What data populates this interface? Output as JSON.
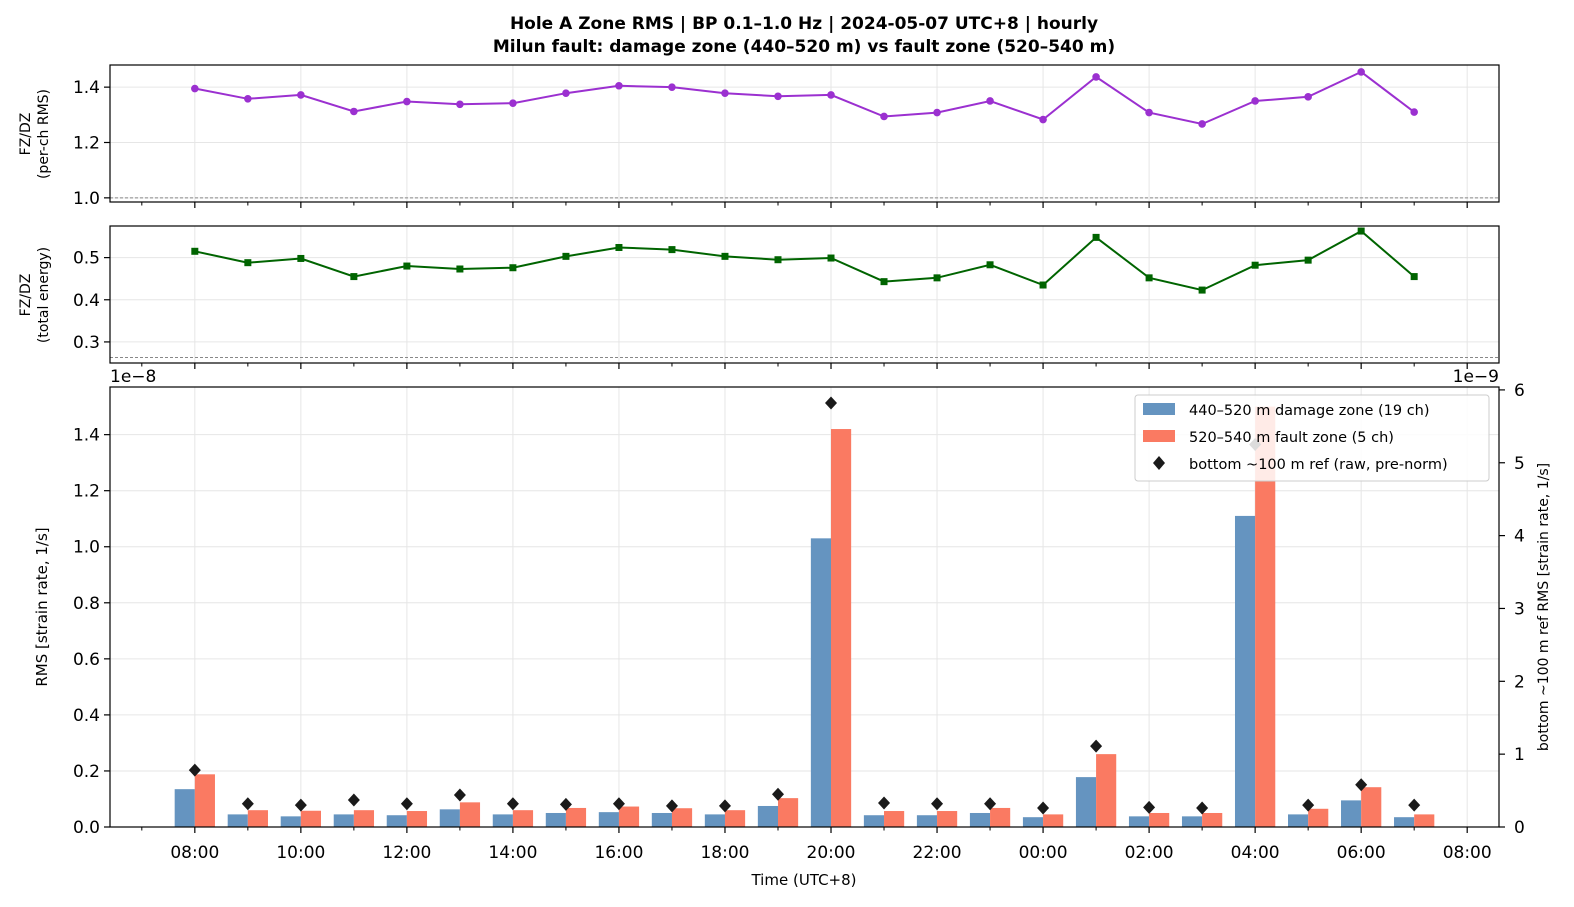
{
  "figure": {
    "title_line1": "Hole A Zone RMS  |  BP 0.1–1.0 Hz  |  2024-05-07 UTC+8  |  hourly",
    "title_line2": "Milun fault: damage zone (440–520 m) vs fault zone (520–540 m)"
  },
  "chart_data": [
    {
      "type": "line",
      "panel": "top",
      "ylabel_line1": "FZ/DZ",
      "ylabel_line2": "(per-ch RMS)",
      "ylim": [
        0.985,
        1.48
      ],
      "yticks": [
        1.0,
        1.2,
        1.4
      ],
      "ytick_labels": [
        "1.0",
        "1.2",
        "1.4"
      ],
      "reference_line": 1.0,
      "color": "#9B30D0",
      "marker": "circle",
      "grid": true,
      "x_hours": [
        8,
        9,
        10,
        11,
        12,
        13,
        14,
        15,
        16,
        17,
        18,
        19,
        20,
        21,
        22,
        23,
        24,
        25,
        26,
        27,
        28,
        29,
        30,
        31
      ],
      "values": [
        1.395,
        1.358,
        1.372,
        1.312,
        1.348,
        1.338,
        1.342,
        1.378,
        1.405,
        1.4,
        1.378,
        1.367,
        1.372,
        1.294,
        1.308,
        1.35,
        1.283,
        1.437,
        1.308,
        1.267,
        1.35,
        1.365,
        1.455,
        1.31
      ]
    },
    {
      "type": "line",
      "panel": "middle",
      "ylabel_line1": "FZ/DZ",
      "ylabel_line2": "(total energy)",
      "ylim": [
        0.25,
        0.575
      ],
      "yticks": [
        0.3,
        0.4,
        0.5
      ],
      "ytick_labels": [
        "0.3",
        "0.4",
        "0.5"
      ],
      "reference_line": 0.263,
      "color": "#006400",
      "marker": "square",
      "grid": true,
      "x_hours": [
        8,
        9,
        10,
        11,
        12,
        13,
        14,
        15,
        16,
        17,
        18,
        19,
        20,
        21,
        22,
        23,
        24,
        25,
        26,
        27,
        28,
        29,
        30,
        31
      ],
      "values": [
        0.515,
        0.488,
        0.498,
        0.455,
        0.48,
        0.473,
        0.476,
        0.503,
        0.524,
        0.519,
        0.503,
        0.495,
        0.499,
        0.443,
        0.452,
        0.483,
        0.435,
        0.548,
        0.452,
        0.423,
        0.482,
        0.494,
        0.563,
        0.455
      ]
    },
    {
      "type": "bar",
      "panel": "bottom",
      "xlabel": "Time (UTC+8)",
      "ylabel": "RMS  [strain rate, 1/s]",
      "y2label": "bottom ~100 m ref RMS  [strain rate, 1/s]",
      "y_offset_label": "1e−8",
      "y2_offset_label": "1e−9",
      "ylim": [
        0,
        1.57
      ],
      "yticks": [
        0.0,
        0.2,
        0.4,
        0.6,
        0.8,
        1.0,
        1.2,
        1.4
      ],
      "ytick_labels": [
        "0.0",
        "0.2",
        "0.4",
        "0.6",
        "0.8",
        "1.0",
        "1.2",
        "1.4"
      ],
      "y2lim": [
        0,
        6.04
      ],
      "y2ticks": [
        0,
        1,
        2,
        3,
        4,
        5,
        6
      ],
      "y2tick_labels": [
        "0",
        "1",
        "2",
        "3",
        "4",
        "5",
        "6"
      ],
      "xlim_hours": [
        6.4,
        32.6
      ],
      "xticks_hours": [
        8,
        10,
        12,
        14,
        16,
        18,
        20,
        22,
        24,
        26,
        28,
        30,
        32
      ],
      "xtick_labels": [
        "08:00",
        "10:00",
        "12:00",
        "14:00",
        "16:00",
        "18:00",
        "20:00",
        "22:00",
        "00:00",
        "02:00",
        "04:00",
        "06:00",
        "08:00"
      ],
      "x_hours": [
        8,
        9,
        10,
        11,
        12,
        13,
        14,
        15,
        16,
        17,
        18,
        19,
        20,
        21,
        22,
        23,
        24,
        25,
        26,
        27,
        28,
        29,
        30,
        31
      ],
      "grid": true,
      "legend_position": "top-right",
      "series": [
        {
          "name": "440–520 m  damage zone (19 ch)",
          "color": "#6594C0",
          "values": [
            0.135,
            0.045,
            0.038,
            0.045,
            0.042,
            0.063,
            0.045,
            0.05,
            0.053,
            0.05,
            0.045,
            0.075,
            1.03,
            0.042,
            0.042,
            0.05,
            0.035,
            0.178,
            0.038,
            0.038,
            1.11,
            0.045,
            0.095,
            0.035
          ]
        },
        {
          "name": "520–540 m  fault zone (5 ch)",
          "color": "#FA7A62",
          "values": [
            0.188,
            0.06,
            0.058,
            0.06,
            0.057,
            0.088,
            0.06,
            0.068,
            0.073,
            0.067,
            0.06,
            0.103,
            1.42,
            0.057,
            0.057,
            0.068,
            0.045,
            0.26,
            0.05,
            0.05,
            1.5,
            0.065,
            0.142,
            0.045
          ]
        },
        {
          "name": "bottom ~100 m ref (raw, pre-norm)",
          "color": "#1a1a1a",
          "marker": "diamond",
          "axis": "right",
          "values": [
            0.78,
            0.32,
            0.3,
            0.37,
            0.32,
            0.44,
            0.32,
            0.31,
            0.32,
            0.29,
            0.29,
            0.45,
            5.82,
            0.33,
            0.32,
            0.32,
            0.26,
            1.11,
            0.27,
            0.26,
            5.25,
            0.3,
            0.58,
            0.3
          ]
        }
      ]
    }
  ]
}
